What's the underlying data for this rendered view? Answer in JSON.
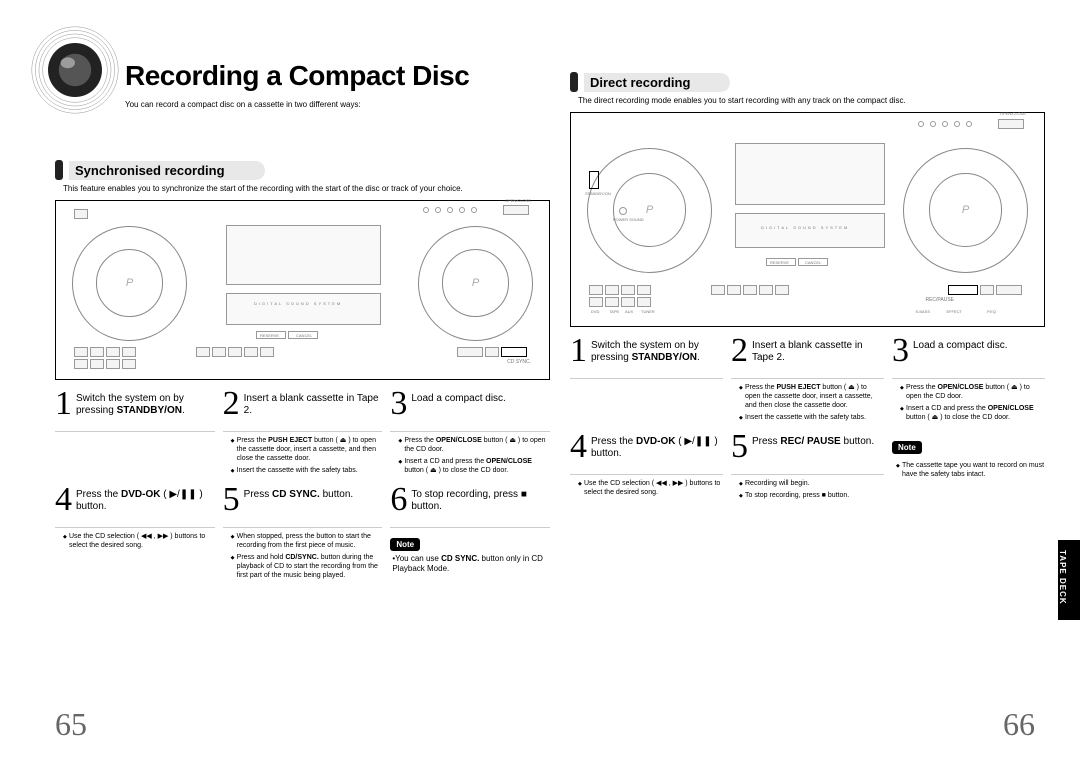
{
  "title": "Recording a Compact Disc",
  "intro": "You can record a compact disc on a cassette in two different ways:",
  "sync": {
    "title": "Synchronised recording",
    "desc": "This feature enables you to synchronize the start of the recording with the start of the disc or track of your choice.",
    "steps": [
      {
        "n": "1",
        "text": "Switch the system on by pressing <b>STANDBY/ON</b>.",
        "detail": []
      },
      {
        "n": "2",
        "text": "Insert a blank cassette in Tape 2.",
        "detail": [
          "Press the <b>PUSH EJECT</b> button ( ⏏ ) to open the cassette door, insert a cassette, and then close the cassette door.",
          "Insert the cassette with the safety tabs."
        ]
      },
      {
        "n": "3",
        "text": "Load a compact disc.",
        "detail": [
          "Press the <b>OPEN/CLOSE</b> button ( ⏏ ) to open the CD door.",
          "Insert a CD and press the <b>OPEN/CLOSE</b> button ( ⏏ ) to close the CD door."
        ]
      },
      {
        "n": "4",
        "text": "Press the <b>DVD-OK</b> ( ▶/❚❚ ) button.",
        "detail": [
          "Use the CD selection ( ◀◀ , ▶▶ ) buttons to select the desired song."
        ]
      },
      {
        "n": "5",
        "text": "Press <b>CD SYNC.</b> button.",
        "detail": [
          "When stopped, press the button to start the recording from the first piece of music.",
          "Press and hold <b>CD/SYNC.</b> button during the playback of CD to start the recording from the first part of the music being played."
        ]
      },
      {
        "n": "6",
        "text": "To stop recording, press ■ button.",
        "detail": []
      }
    ],
    "note": "•You can use <b>CD SYNC.</b> button only in CD Playback Mode."
  },
  "direct": {
    "title": "Direct recording",
    "desc": "The direct recording mode enables you to start recording with any track on the compact disc.",
    "steps": [
      {
        "n": "1",
        "text": "Switch the system on by pressing <b>STANDBY/ON</b>.",
        "detail": []
      },
      {
        "n": "2",
        "text": "Insert a blank cassette in Tape 2.",
        "detail": [
          "Press the <b>PUSH EJECT</b> button ( ⏏ ) to open the cassette door, insert a cassette, and then close the cassette door.",
          "Insert the cassette with the safety tabs."
        ]
      },
      {
        "n": "3",
        "text": "Load a compact disc.",
        "detail": [
          "Press the <b>OPEN/CLOSE</b> button ( ⏏ ) to open the CD door.",
          "Insert a CD and press the <b>OPEN/CLOSE</b> button ( ⏏ ) to close the CD door."
        ]
      },
      {
        "n": "4",
        "text": "Press the <b>DVD-OK</b> ( ▶/❚❚ ) button.",
        "detail": [
          "Use the CD selection ( ◀◀ , ▶▶ ) buttons to select the desired song."
        ]
      },
      {
        "n": "5",
        "text": "Press <b class='rec-pause'>REC/ PAUSE</b> button.",
        "detail": [
          "Recording will begin.",
          "To stop recording, press ■ button."
        ]
      }
    ],
    "note": "The cassette tape you want to record on must have the safety tabs intact."
  },
  "page_left": "65",
  "page_right": "66",
  "side_tab": "TAPE DECK",
  "note_label": "Note"
}
